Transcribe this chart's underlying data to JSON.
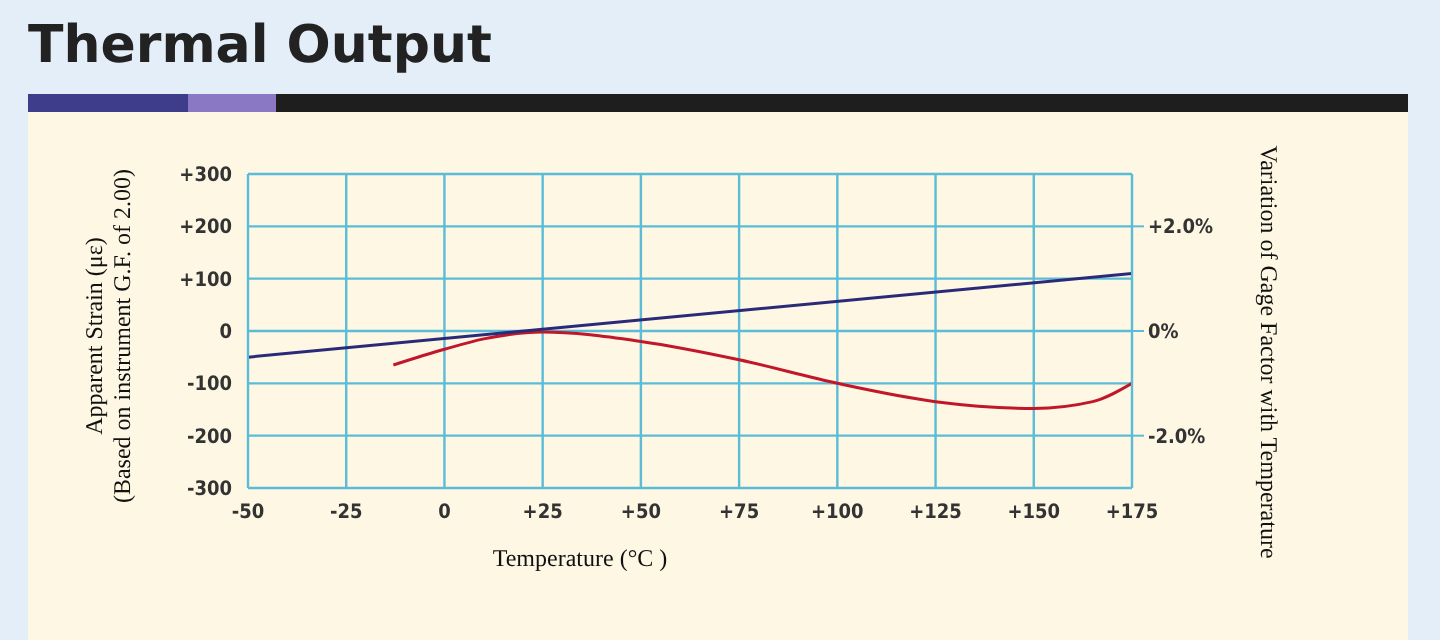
{
  "chart_data": {
    "type": "line",
    "title": "Thermal Output",
    "xlabel": "Temperature (°C )",
    "ylabel": "Apparent Strain (με)\n(Based on instrument G.F. of 2.00)",
    "y2label": "Variation of Gage Factor with Temperature",
    "series": [
      {
        "color": "#c0182a",
        "x": [
          -13,
          0,
          10,
          25,
          50,
          75,
          100,
          125,
          150,
          165,
          175
        ],
        "values": [
          -65,
          -35,
          -15,
          -2,
          -20,
          -55,
          -100,
          -135,
          -148,
          -135,
          -100
        ]
      },
      {
        "color": "#2a2a78",
        "axis": "y2",
        "x": [
          -50,
          175
        ],
        "values": [
          -0.5,
          1.1
        ]
      }
    ],
    "xlim": [
      -50,
      175
    ],
    "xticks": [
      -50,
      -25,
      0,
      {
        "value": 25,
        "label": "+25"
      },
      {
        "value": 50,
        "label": "+50"
      },
      {
        "value": 75,
        "label": "+75"
      },
      {
        "value": 100,
        "label": "+100"
      },
      {
        "value": 125,
        "label": "+125"
      },
      {
        "value": 150,
        "label": "+150"
      },
      {
        "value": 175,
        "label": "+175"
      }
    ],
    "ylim": [
      -300,
      300
    ],
    "yticks": [
      -300,
      -200,
      -100,
      0,
      {
        "value": 100,
        "label": "+100"
      },
      {
        "value": 200,
        "label": "+200"
      },
      {
        "value": 300,
        "label": "+300"
      }
    ],
    "y2lim": [
      -3,
      3
    ],
    "y2ticks": [
      {
        "value": -2,
        "label": "-2.0%"
      },
      {
        "value": 0,
        "label": "0%"
      },
      {
        "value": 2,
        "label": "+2.0%"
      }
    ],
    "grid": true,
    "legend": false,
    "marker": "none",
    "line_style": "solid"
  }
}
